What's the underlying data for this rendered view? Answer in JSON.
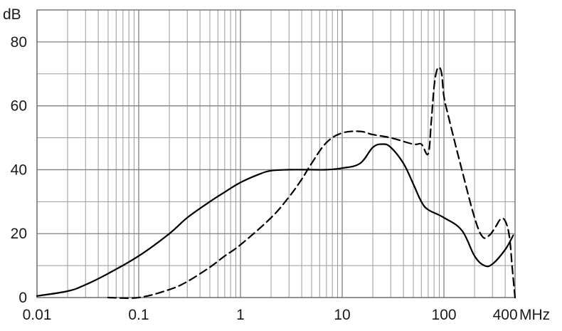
{
  "chart_data": {
    "type": "line",
    "title": "",
    "xlabel": "MHz",
    "ylabel": "dB",
    "x_scale": "log",
    "xlim": [
      0.01,
      500
    ],
    "ylim": [
      0,
      90
    ],
    "x_ticks": [
      {
        "value": 0.01,
        "label": "0.01"
      },
      {
        "value": 0.1,
        "label": "0.1"
      },
      {
        "value": 1,
        "label": "1"
      },
      {
        "value": 10,
        "label": "10"
      },
      {
        "value": 100,
        "label": "100"
      },
      {
        "value": 400,
        "label": "400"
      }
    ],
    "y_ticks": [
      {
        "value": 0,
        "label": "0"
      },
      {
        "value": 20,
        "label": "20"
      },
      {
        "value": 40,
        "label": "40"
      },
      {
        "value": 60,
        "label": "60"
      },
      {
        "value": 80,
        "label": "80"
      }
    ],
    "grid": true,
    "series": [
      {
        "style": "solid",
        "color": "#000000",
        "points": [
          [
            0.01,
            0.5
          ],
          [
            0.02,
            2
          ],
          [
            0.03,
            4
          ],
          [
            0.05,
            7.5
          ],
          [
            0.1,
            13
          ],
          [
            0.2,
            20
          ],
          [
            0.3,
            25
          ],
          [
            0.5,
            30
          ],
          [
            0.7,
            33
          ],
          [
            1,
            36
          ],
          [
            1.5,
            38.5
          ],
          [
            2,
            39.7
          ],
          [
            3,
            40
          ],
          [
            5,
            40
          ],
          [
            7,
            40
          ],
          [
            10,
            40.5
          ],
          [
            15,
            42
          ],
          [
            20,
            47
          ],
          [
            25,
            48
          ],
          [
            30,
            47
          ],
          [
            40,
            42
          ],
          [
            50,
            35.5
          ],
          [
            60,
            30
          ],
          [
            70,
            27.5
          ],
          [
            100,
            25
          ],
          [
            150,
            21
          ],
          [
            200,
            13
          ],
          [
            250,
            10
          ],
          [
            300,
            10.5
          ],
          [
            400,
            15
          ],
          [
            480,
            19.5
          ]
        ]
      },
      {
        "style": "dashed",
        "color": "#000000",
        "points": [
          [
            0.05,
            0
          ],
          [
            0.1,
            0
          ],
          [
            0.2,
            2.5
          ],
          [
            0.3,
            5
          ],
          [
            0.5,
            9.5
          ],
          [
            0.7,
            13
          ],
          [
            1,
            16.5
          ],
          [
            2,
            25
          ],
          [
            3,
            31.5
          ],
          [
            4,
            37
          ],
          [
            5,
            42
          ],
          [
            7,
            48.5
          ],
          [
            10,
            51.5
          ],
          [
            15,
            52
          ],
          [
            20,
            51
          ],
          [
            30,
            50
          ],
          [
            50,
            48
          ],
          [
            60,
            48
          ],
          [
            70,
            45
          ],
          [
            75,
            55
          ],
          [
            80,
            66
          ],
          [
            85,
            71
          ],
          [
            90,
            72
          ],
          [
            95,
            70
          ],
          [
            100,
            63
          ],
          [
            110,
            57
          ],
          [
            150,
            40
          ],
          [
            200,
            25
          ],
          [
            240,
            19
          ],
          [
            280,
            19.5
          ],
          [
            320,
            22
          ],
          [
            360,
            24.5
          ],
          [
            400,
            24
          ],
          [
            440,
            19
          ],
          [
            470,
            9
          ],
          [
            500,
            0
          ]
        ]
      }
    ]
  }
}
